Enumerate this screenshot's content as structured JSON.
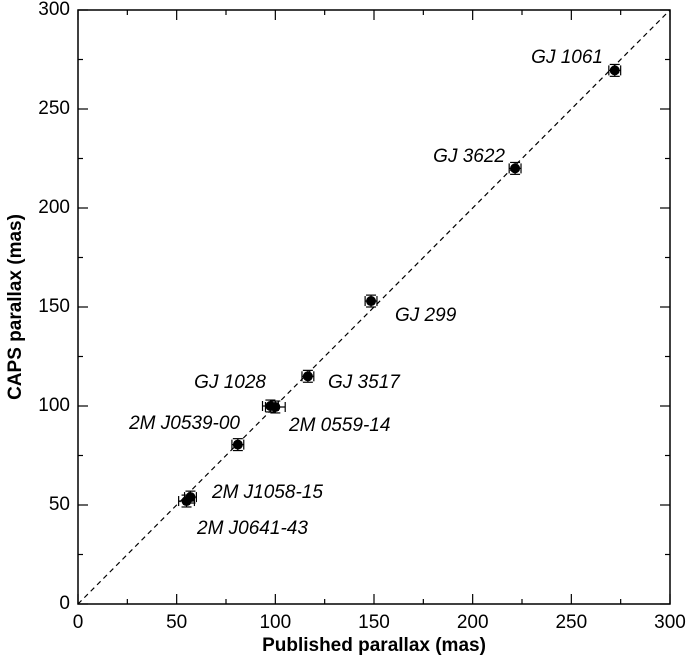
{
  "chart_data": {
    "type": "scatter",
    "xlabel": "Published parallax (mas)",
    "ylabel": "CAPS parallax (mas)",
    "xlim": [
      0,
      300
    ],
    "ylim": [
      0,
      300
    ],
    "xticks": [
      0,
      50,
      100,
      150,
      200,
      250,
      300
    ],
    "yticks": [
      0,
      50,
      100,
      150,
      200,
      250,
      300
    ],
    "xticks_minor": [
      25,
      75,
      125,
      175,
      225,
      275
    ],
    "yticks_minor": [
      25,
      75,
      125,
      175,
      225,
      275
    ],
    "color": "#000000",
    "points": [
      {
        "label": "GJ 1061",
        "x": 272,
        "y": 269.5,
        "xerr": 3,
        "yerr": 3
      },
      {
        "label": "GJ 3622",
        "x": 221.5,
        "y": 220,
        "xerr": 3,
        "yerr": 3
      },
      {
        "label": "GJ 299",
        "x": 148.5,
        "y": 153,
        "xerr": 3,
        "yerr": 3
      },
      {
        "label": "GJ 3517",
        "x": 116.5,
        "y": 115,
        "xerr": 3,
        "yerr": 3
      },
      {
        "label": "GJ 1028",
        "x": 97.5,
        "y": 100,
        "xerr": 4,
        "yerr": 3
      },
      {
        "label": "2M 0559-14",
        "x": 100,
        "y": 99.5,
        "xerr": 5,
        "yerr": 3
      },
      {
        "label": "2M J0539-00",
        "x": 81,
        "y": 80.5,
        "xerr": 3,
        "yerr": 3
      },
      {
        "label": "2M J1058-15",
        "x": 57,
        "y": 54,
        "xerr": 3,
        "yerr": 3
      },
      {
        "label": "2M J0641-43",
        "x": 55,
        "y": 52,
        "xerr": 4,
        "yerr": 3
      }
    ]
  }
}
